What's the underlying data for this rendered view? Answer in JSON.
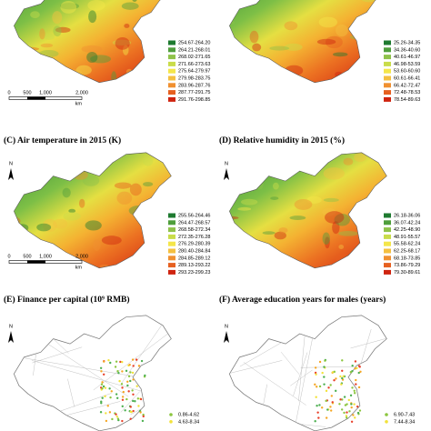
{
  "panels": [
    {
      "legend": [
        "254.67-264.20",
        "264.21-268.01",
        "268.02-271.65",
        "271.66-273.63",
        "275.64-279.97",
        "279.98-283.75",
        "283.96-287.76",
        "287.77-291.75",
        "291.76-298.85"
      ],
      "scale_bar": {
        "ticks": [
          "0",
          "500",
          "1,000",
          "2,000"
        ],
        "unit": "km"
      }
    },
    {
      "legend": [
        "25.26-34.35",
        "34.36-40.60",
        "40.61-46.97",
        "46.98-53.59",
        "53.60-60.60",
        "60.61-66.41",
        "66.42-72.47",
        "72.48-78.53",
        "78.54-89.63"
      ]
    },
    {
      "title": "(C) Air temperature in 2015 (K)",
      "north": "N",
      "legend": [
        "255.56-264.46",
        "264.47-268.57",
        "268.58-272.34",
        "272.35-276.28",
        "276.29-280.39",
        "280.40-284.84",
        "284.85-289.12",
        "289.13-293.22",
        "293.23-299.23"
      ],
      "scale_bar": {
        "ticks": [
          "0",
          "500",
          "1,000",
          "2,000"
        ],
        "unit": "km"
      }
    },
    {
      "title": "(D) Relative humidity in 2015 (%)",
      "north": "N",
      "legend": [
        "26.18-36.06",
        "36.07-42.24",
        "42.25-48.90",
        "48.91-55.57",
        "55.58-62.24",
        "62.25-68.17",
        "68.18-73.85",
        "73.86-79.29",
        "79.30-89.61"
      ]
    },
    {
      "title": "(E) Finance per capital (10⁹ RMB)",
      "north": "N",
      "legend": [
        "0.86-4.62",
        "4.63-8.34"
      ]
    },
    {
      "title": "(F) Average education years for males (years)",
      "north": "N",
      "legend": [
        "6.90-7.43",
        "7.44-8.34"
      ]
    }
  ]
}
